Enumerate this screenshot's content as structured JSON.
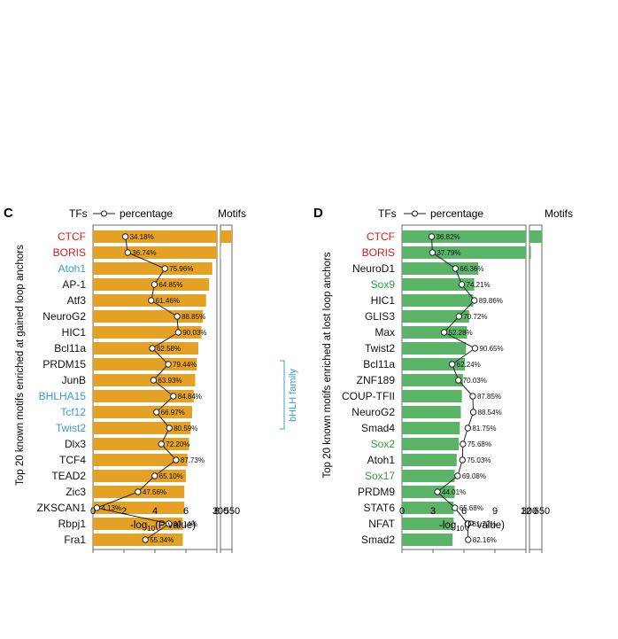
{
  "colors": {
    "gained_bar": "#E3A126",
    "lost_bar": "#5BB368",
    "highlight_red": "#D7191C",
    "highlight_blue": "#3B9AD9",
    "highlight_green": "#2E9E36",
    "line": "#222222"
  },
  "panels": {
    "C": {
      "letter": "C",
      "header_tfs": "TFs",
      "header_legend": "percentage",
      "header_motifs": "Motifs",
      "ylabel": "Top 20 known motifs enriched at gained loop anchors"
    },
    "D": {
      "letter": "D",
      "header_tfs": "TFs",
      "header_legend": "percentage",
      "header_motifs": "Motifs",
      "ylabel": "Top 20 known motifs enriched at lost loop anchors"
    }
  },
  "annotation": {
    "bhlh_label": "bHLH family"
  },
  "chart_data": [
    {
      "panel": "C",
      "type": "bar",
      "orientation": "horizontal",
      "title": "Top 20 known motifs enriched at gained loop anchors",
      "xlabel": "-log10(P value)",
      "axis_break": {
        "low_range": [
          0,
          8
        ],
        "high_range": [
          300,
          550
        ]
      },
      "x_ticks": [
        "0",
        "2",
        "4",
        "6",
        "8",
        "300",
        "550"
      ],
      "categories": [
        "CTCF",
        "BORIS",
        "Atoh1",
        "AP-1",
        "Atf3",
        "NeuroG2",
        "HIC1",
        "Bcl11a",
        "PRDM15",
        "JunB",
        "BHLHA15",
        "Tcf12",
        "Twist2",
        "Dlx3",
        "TCF4",
        "TEAD2",
        "Zic3",
        "ZKSCAN1",
        "Rbpj1",
        "Fra1"
      ],
      "label_colors": [
        "red",
        "red",
        "blue",
        "black",
        "black",
        "black",
        "black",
        "black",
        "black",
        "black",
        "blue",
        "blue",
        "blue",
        "black",
        "black",
        "black",
        "black",
        "black",
        "black",
        "black"
      ],
      "values": [
        550,
        310,
        7.7,
        7.5,
        7.3,
        7.1,
        7.0,
        6.8,
        6.7,
        6.6,
        6.5,
        6.4,
        6.3,
        6.2,
        6.1,
        6.0,
        5.9,
        5.9,
        5.8,
        5.8
      ],
      "percentage": [
        34.18,
        36.74,
        75.96,
        64.85,
        61.46,
        88.85,
        90.03,
        62.58,
        79.44,
        63.93,
        84.84,
        66.97,
        80.59,
        72.2,
        87.73,
        65.1,
        47.56,
        4.13,
        80.14,
        55.34
      ],
      "percentage_labels": [
        "34.18%",
        "36.74%",
        "75.96%",
        "64.85%",
        "61.46%",
        "88.85%",
        "90.03%",
        "62.58%",
        "79.44%",
        "63.93%",
        "84.84%",
        "66.97%",
        "80.59%",
        "72.20%",
        "87.73%",
        "65.10%",
        "47.56%",
        "4.13%",
        "80.14%",
        "55.34%"
      ]
    },
    {
      "panel": "D",
      "type": "bar",
      "orientation": "horizontal",
      "title": "Top 20 known motifs enriched at lost loop anchors",
      "xlabel": "-log10(P value)",
      "axis_break": {
        "low_range": [
          0,
          12
        ],
        "high_range": [
          300,
          650
        ]
      },
      "x_ticks": [
        "0",
        "3",
        "6",
        "9",
        "12",
        "300",
        "650"
      ],
      "categories": [
        "CTCF",
        "BORIS",
        "NeuroD1",
        "Sox9",
        "HIC1",
        "GLIS3",
        "Max",
        "Twist2",
        "Bcl11a",
        "ZNF189",
        "COUP-TFII",
        "NeuroG2",
        "Smad4",
        "Sox2",
        "Atoh1",
        "Sox17",
        "PRDM9",
        "STAT6",
        "NFAT",
        "Smad2"
      ],
      "label_colors": [
        "red",
        "red",
        "black",
        "green",
        "black",
        "black",
        "black",
        "black",
        "black",
        "black",
        "black",
        "black",
        "black",
        "green",
        "black",
        "green",
        "black",
        "black",
        "black",
        "black"
      ],
      "values": [
        650,
        340,
        7.4,
        7.0,
        6.9,
        6.5,
        6.3,
        6.2,
        6.1,
        5.9,
        5.8,
        5.7,
        5.6,
        5.5,
        5.3,
        5.1,
        5.1,
        5.0,
        5.0,
        4.9
      ],
      "percentage": [
        36.82,
        37.79,
        66.36,
        74.21,
        89.86,
        70.72,
        52.28,
        90.65,
        62.24,
        70.03,
        87.85,
        88.54,
        81.75,
        75.68,
        75.03,
        69.08,
        44.01,
        65.68,
        81.72,
        82.16
      ],
      "percentage_labels": [
        "36.82%",
        "37.79%",
        "66.36%",
        "74.21%",
        "89.86%",
        "70.72%",
        "52.28%",
        "90.65%",
        "62.24%",
        "70.03%",
        "87.85%",
        "88.54%",
        "81.75%",
        "75.68%",
        "75.03%",
        "69.08%",
        "44.01%",
        "65.68%",
        "81.72%",
        "82.16%"
      ]
    }
  ]
}
